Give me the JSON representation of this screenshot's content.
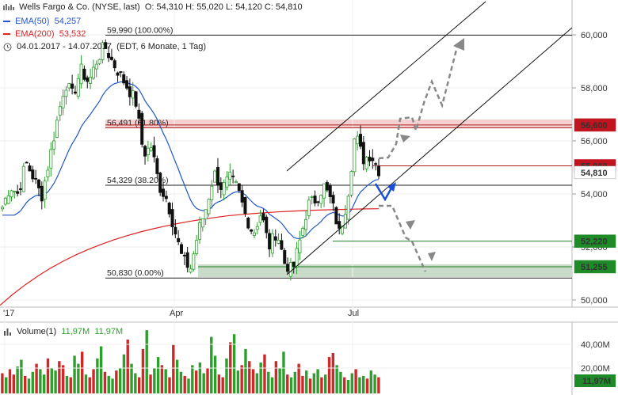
{
  "header": {
    "symbol": "Wells Fargo & Co. (NYSE, last)",
    "ohlc": "O: 54,310  H: 55,020  L: 54,120  C: 54,810",
    "ema50_label": "EMA(50)",
    "ema50_value": "54,257",
    "ema200_label": "EMA(200)",
    "ema200_value": "53,532",
    "period": "04.01.2017 - 14.07.2017",
    "period_note": "(EDT, 6 Monate, 1 Tag)"
  },
  "volume_header": {
    "label": "Volume(1)",
    "v1": "11,97M",
    "v2": "11,97M"
  },
  "colors": {
    "up": "#2e9e2e",
    "down": "#111111",
    "ema50": "#2255cc",
    "ema200": "#dd2222",
    "badge_red": "#c0141e",
    "badge_green": "#1e8a28",
    "projection": "#888888"
  },
  "chart_data": {
    "type": "candlestick",
    "ylim": [
      49.5,
      61.2
    ],
    "x_ticks": [
      "'17",
      "Apr",
      "Jul"
    ],
    "y_ticks": [
      "50,000",
      "52,000",
      "54,000",
      "56,000",
      "58,000",
      "60,000"
    ],
    "price_badges": [
      "56,600",
      "55,060",
      "54,810",
      "52,220",
      "51,255"
    ],
    "fib_levels": [
      {
        "label": "59,990 (100.00%)",
        "value": 59.99
      },
      {
        "label": "56,491 (61.80%)",
        "value": 56.491
      },
      {
        "label": "54,329 (38.20%)",
        "value": 54.329
      },
      {
        "label": "50,830 (0.00%)",
        "value": 50.83
      }
    ],
    "close_path": [
      53.5,
      54.3,
      54.0,
      55.2,
      54.6,
      53.9,
      55.3,
      56.8,
      58.2,
      57.7,
      58.7,
      58.2,
      59.0,
      59.6,
      59.0,
      58.5,
      58.0,
      57.5,
      55.5,
      55.8,
      54.3,
      53.8,
      52.6,
      51.5,
      51.2,
      52.6,
      53.5,
      54.8,
      54.2,
      54.6,
      54.2,
      53.2,
      52.5,
      53.3,
      52.0,
      52.6,
      51.4,
      51.1,
      52.3,
      53.6,
      53.8,
      54.3,
      53.7,
      52.5,
      53.8,
      56.3,
      55.3,
      55.5,
      54.9
    ],
    "volume_values": [
      15,
      12,
      18,
      14,
      20,
      25,
      13,
      11,
      16,
      22,
      18,
      14,
      26,
      19,
      17,
      24,
      21,
      13,
      12,
      28,
      22,
      31,
      14,
      12,
      18,
      26,
      35,
      16,
      13,
      11,
      17,
      19,
      29,
      40,
      22,
      15,
      12,
      33,
      47,
      14,
      19,
      27,
      21,
      18,
      12,
      36,
      25,
      16,
      13,
      11,
      21,
      17,
      23,
      15,
      19,
      42,
      28,
      14,
      12,
      26,
      38,
      44,
      17,
      21,
      33,
      24,
      18,
      15,
      23,
      29,
      16,
      12,
      24,
      19,
      31,
      14,
      12,
      16,
      22,
      13,
      17,
      11,
      15,
      18,
      12,
      14,
      27,
      30,
      21,
      16,
      12,
      10,
      15,
      18,
      12,
      13,
      11,
      17,
      14,
      12
    ]
  }
}
